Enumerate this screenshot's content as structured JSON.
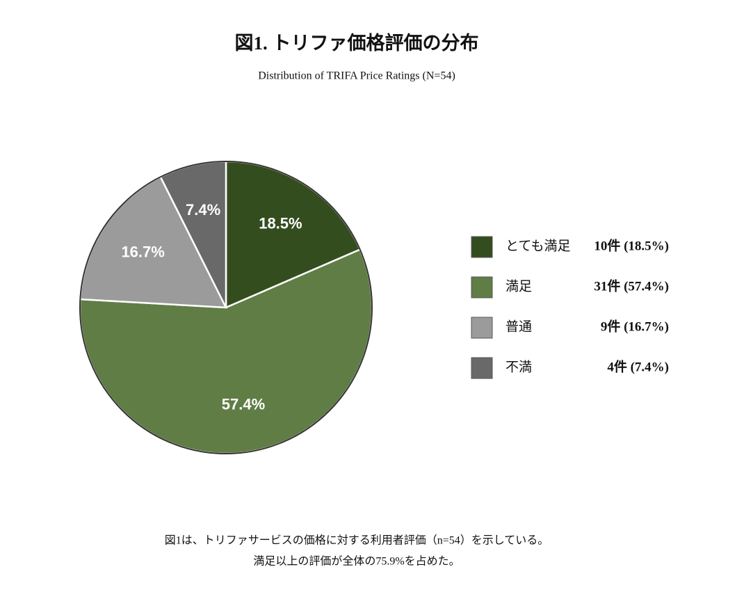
{
  "chart_data": {
    "type": "pie",
    "title": "図1. トリファ価格評価の分布",
    "subtitle": "Distribution of TRIFA Price Ratings (N=54)",
    "categories": [
      "とても満足",
      "満足",
      "普通",
      "不満"
    ],
    "values": [
      18.5,
      57.4,
      16.7,
      7.4
    ],
    "value_labels": [
      "18.5%",
      "57.4%",
      "16.7%",
      "7.4%"
    ],
    "legend_details": [
      "10件 (18.5%)",
      "31件 (57.4%)",
      "9件 (16.7%)",
      "4件 (7.4%)"
    ],
    "colors": [
      "#344d1f",
      "#607d45",
      "#9b9b9b",
      "#696969"
    ],
    "caption": [
      "図1は、トリファサービスの価格に対する利用者評価（n=54）を示している。",
      "満足以上の評価が全体の75.9%を占めた。"
    ]
  }
}
